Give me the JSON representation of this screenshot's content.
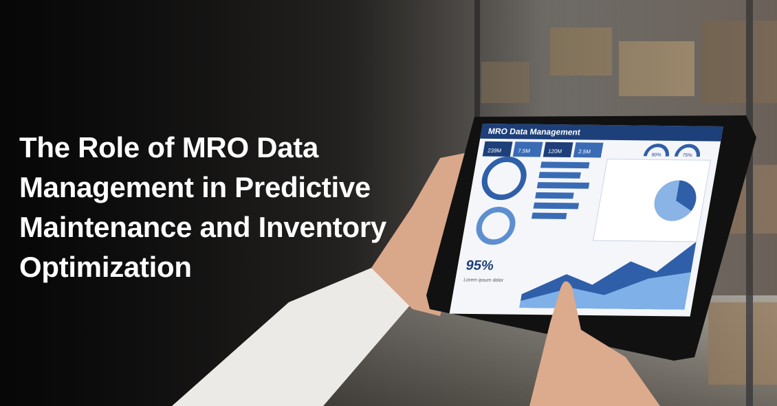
{
  "title_lines": [
    "The Role of MRO Data",
    "Management in Predictive",
    "Maintenance and Inventory",
    "Optimization"
  ],
  "tablet": {
    "heading": "MRO Data Management",
    "stats": [
      "239M",
      "7.5M",
      "120M",
      "2.5M"
    ],
    "gauges": [
      "90%",
      "75%"
    ],
    "big_stat": "95%",
    "caption": "Lorem ipsum dolor"
  }
}
